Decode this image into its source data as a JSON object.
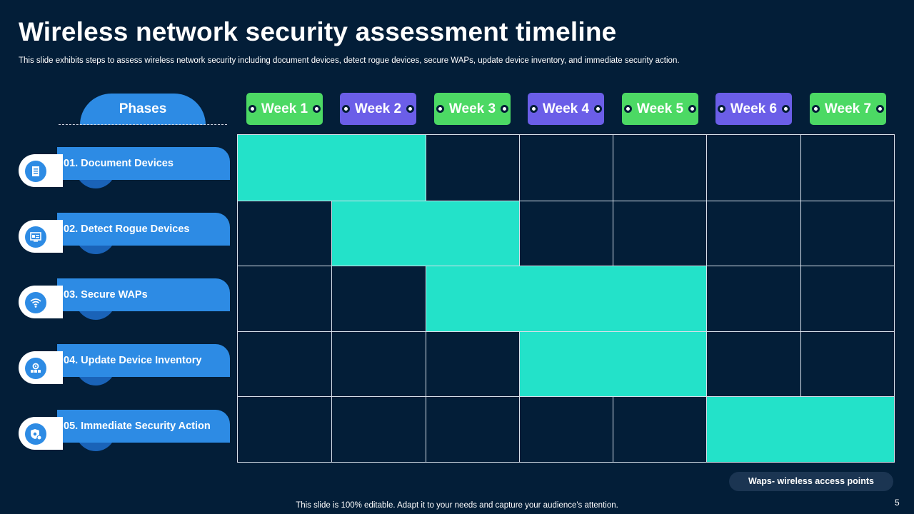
{
  "slide": {
    "title": "Wireless network security assessment timeline",
    "subtitle": "This slide exhibits steps to assess wireless network security including document devices, detect rogue devices, secure WAPs, update device inventory,  and immediate security action.",
    "phases_header": "Phases",
    "phases": [
      {
        "label": "01. Document Devices",
        "icon": "document-icon"
      },
      {
        "label": "02. Detect Rogue Devices",
        "icon": "device-scan-icon"
      },
      {
        "label": "03. Secure WAPs",
        "icon": "wifi-icon"
      },
      {
        "label": "04. Update Device Inventory",
        "icon": "inventory-gear-icon"
      },
      {
        "label": "05. Immediate Security Action",
        "icon": "shield-gear-icon"
      }
    ],
    "weeks": [
      "Week 1",
      "Week 2",
      "Week 3",
      "Week 4",
      "Week 5",
      "Week 6",
      "Week 7"
    ],
    "schedule": [
      {
        "phase": "01. Document Devices",
        "start_week": 1,
        "end_week": 2
      },
      {
        "phase": "02. Detect Rogue Devices",
        "start_week": 2,
        "end_week": 3
      },
      {
        "phase": "03. Secure WAPs",
        "start_week": 3,
        "end_week": 5
      },
      {
        "phase": "04. Update Device Inventory",
        "start_week": 4,
        "end_week": 5
      },
      {
        "phase": "05. Immediate Security Action",
        "start_week": 6,
        "end_week": 7
      }
    ],
    "legend": "Waps- wireless access  points",
    "footer": "This slide is 100% editable. Adapt it to your needs and capture your audience's attention.",
    "page_number": "5",
    "colors": {
      "background": "#031e38",
      "phase_blue": "#2d8be4",
      "week_green": "#4cd964",
      "week_purple": "#6b5ee8",
      "task_fill": "#23e2c9"
    }
  }
}
